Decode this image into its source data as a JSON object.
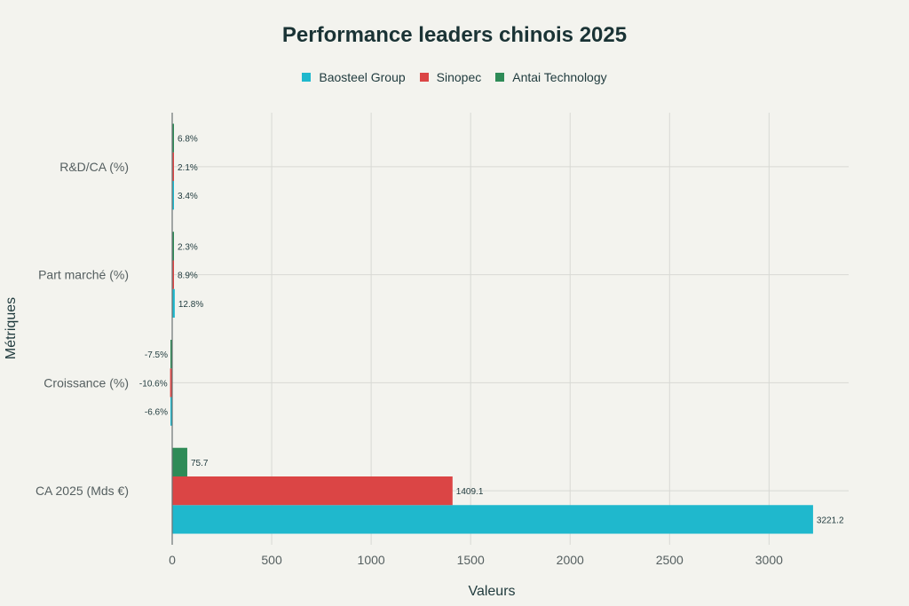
{
  "chart_data": {
    "type": "bar",
    "orientation": "horizontal",
    "title": "Performance leaders chinois 2025",
    "xlabel": "Valeurs",
    "ylabel": "Métriques",
    "categories": [
      "CA 2025 (Mds €)",
      "Croissance (%)",
      "Part marché (%)",
      "R&D/CA (%)"
    ],
    "series": [
      {
        "name": "Baosteel Group",
        "color": "#1fb8cd",
        "values": [
          3221.2,
          -6.6,
          12.8,
          3.4
        ],
        "labels": [
          "3221.2",
          "-6.6%",
          "12.8%",
          "3.4%"
        ]
      },
      {
        "name": "Sinopec",
        "color": "#db4545",
        "values": [
          1409.1,
          -10.6,
          8.9,
          2.1
        ],
        "labels": [
          "1409.1",
          "-10.6%",
          "8.9%",
          "2.1%"
        ]
      },
      {
        "name": "Antai Technology",
        "color": "#2e8b57",
        "values": [
          75.7,
          -7.5,
          2.3,
          6.8
        ],
        "labels": [
          "75.7",
          "-7.5%",
          "2.3%",
          "6.8%"
        ]
      }
    ],
    "xlim": [
      0,
      3400
    ],
    "xticks": [
      0,
      500,
      1000,
      1500,
      2000,
      2500,
      3000
    ],
    "grid": true,
    "legend_position": "top-center"
  }
}
